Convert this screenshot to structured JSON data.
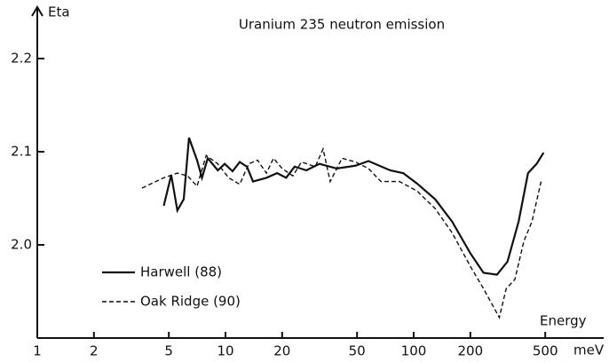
{
  "chart_data": {
    "type": "line",
    "title": "Uranium 235 neutron emission",
    "y_label": "Eta",
    "x_label": "Energy",
    "x_unit": "meV",
    "log_x": true,
    "xlim": [
      1,
      1000
    ],
    "xticks": [
      1,
      2,
      5,
      10,
      20,
      50,
      100,
      200,
      500
    ],
    "ylim": [
      1.9,
      2.25
    ],
    "yticks": [
      {
        "value": 2,
        "label": "2.0"
      },
      2.1,
      2.2
    ],
    "grid": false,
    "legend": "lower left",
    "series": [
      {
        "name": "Harwell (88)",
        "color": "#111111",
        "dash": "solid",
        "x": [
          4.7,
          5.15,
          5.55,
          6.0,
          6.4,
          7.06,
          7.5,
          8.05,
          9.1,
          9.9,
          10.9,
          11.9,
          13,
          14,
          16.5,
          18.8,
          21,
          23.3,
          26.9,
          31.6,
          39,
          49,
          57.5,
          75,
          88,
          104,
          130,
          160,
          200,
          235,
          277,
          315,
          361,
          405,
          450,
          490
        ],
        "values": [
          2.042,
          2.075,
          2.037,
          2.049,
          2.115,
          2.091,
          2.072,
          2.093,
          2.08,
          2.087,
          2.079,
          2.089,
          2.084,
          2.068,
          2.072,
          2.077,
          2.072,
          2.084,
          2.08,
          2.087,
          2.082,
          2.085,
          2.09,
          2.08,
          2.077,
          2.066,
          2.049,
          2.025,
          1.991,
          1.97,
          1.968,
          1.982,
          2.025,
          2.077,
          2.087,
          2.099
        ]
      },
      {
        "name": "Oak Ridge (90)",
        "color": "#111111",
        "dash": "dashed",
        "x": [
          3.6,
          4.7,
          5.55,
          6.3,
          7.06,
          7.9,
          9.1,
          10.4,
          11.9,
          13.3,
          14.8,
          16.5,
          18,
          20,
          22.8,
          25.3,
          30,
          33,
          36,
          41.6,
          49,
          57.5,
          67,
          84,
          104,
          130,
          160,
          200,
          235,
          285,
          310,
          345,
          385,
          425,
          475
        ],
        "values": [
          2.061,
          2.072,
          2.077,
          2.074,
          2.063,
          2.096,
          2.087,
          2.072,
          2.065,
          2.087,
          2.091,
          2.077,
          2.093,
          2.082,
          2.074,
          2.089,
          2.084,
          2.103,
          2.068,
          2.093,
          2.089,
          2.082,
          2.068,
          2.068,
          2.058,
          2.039,
          2.013,
          1.977,
          1.953,
          1.922,
          1.953,
          1.963,
          2.004,
          2.025,
          2.068
        ]
      }
    ]
  }
}
